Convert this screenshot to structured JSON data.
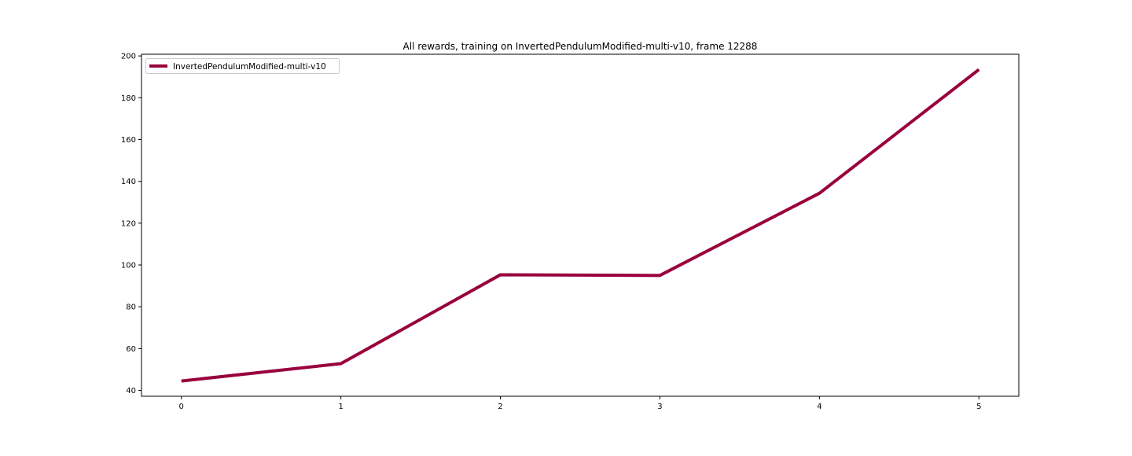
{
  "chart_data": {
    "type": "line",
    "title": "All rewards, training on InvertedPendulumModified-multi-v10, frame 12288",
    "xlabel": "",
    "ylabel": "",
    "x": [
      0,
      1,
      2,
      3,
      4,
      5
    ],
    "xticks": [
      "0",
      "1",
      "2",
      "3",
      "4",
      "5"
    ],
    "yticks": [
      "40",
      "60",
      "80",
      "100",
      "120",
      "140",
      "160",
      "180",
      "200"
    ],
    "xlim": [
      -0.25,
      5.25
    ],
    "ylim": [
      37.2,
      200.8
    ],
    "grid": false,
    "legend_position": "top-left",
    "series": [
      {
        "name": "InvertedPendulumModified-multi-v10",
        "color": "#99003d",
        "values": [
          44.5,
          52.8,
          95.3,
          95.0,
          134.3,
          193.5
        ]
      }
    ]
  }
}
